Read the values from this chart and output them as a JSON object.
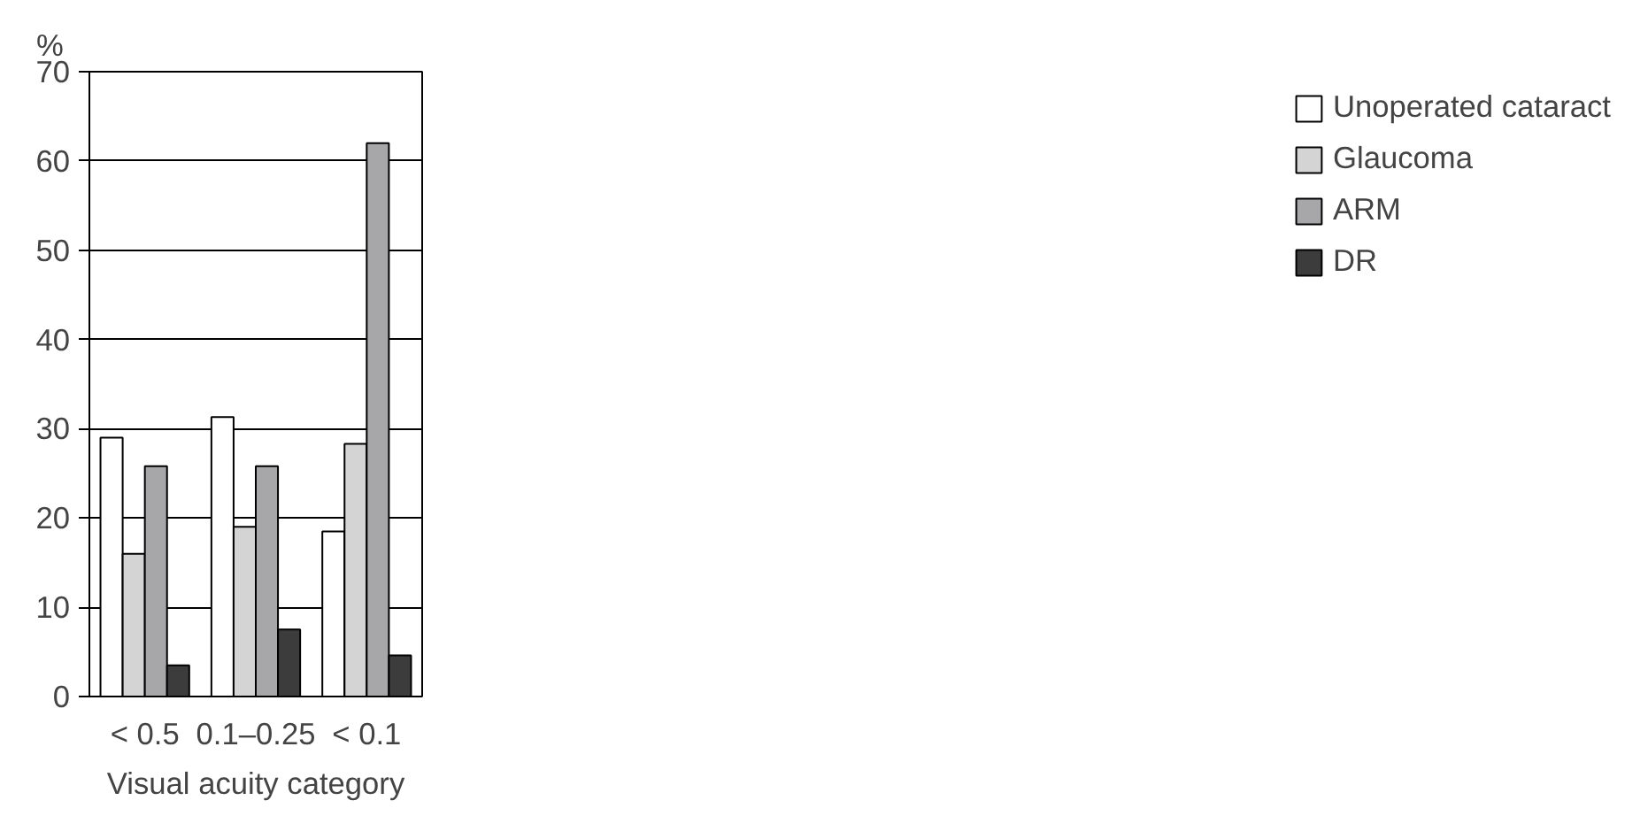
{
  "chart_data": {
    "type": "bar",
    "ylabel": "%",
    "xlabel": "Visual acuity category",
    "categories": [
      "< 0.5",
      "0.1–0.25",
      "< 0.1"
    ],
    "ylim": [
      0,
      70
    ],
    "yticks": [
      0,
      10,
      20,
      30,
      40,
      50,
      60,
      70
    ],
    "grid": "y",
    "legend": "right",
    "series": [
      {
        "name": "Unoperated cataract",
        "color": "#ffffff",
        "values": [
          29,
          31.3,
          18.5
        ]
      },
      {
        "name": "Glaucoma",
        "color": "#d4d4d4",
        "values": [
          16,
          19,
          28.3
        ]
      },
      {
        "name": "ARM",
        "color": "#a7a7a9",
        "values": [
          25.8,
          25.8,
          62
        ]
      },
      {
        "name": "DR",
        "color": "#3c3c3c",
        "values": [
          3.5,
          7.5,
          4.6
        ]
      }
    ]
  }
}
